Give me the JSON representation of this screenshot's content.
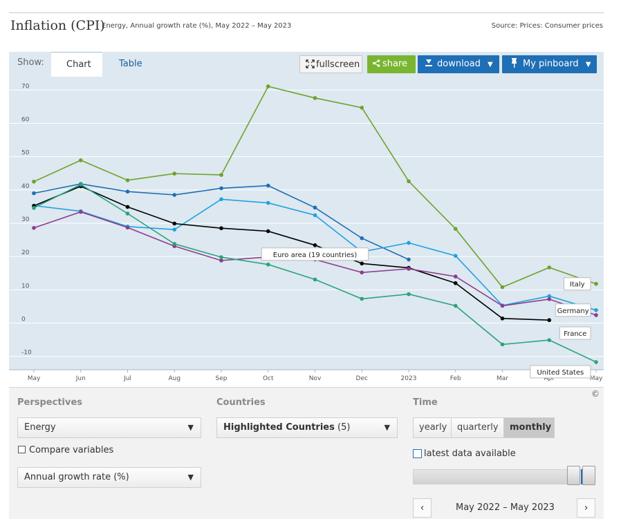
{
  "header": {
    "title": "Inflation (CPI)",
    "subtitle": "Energy, Annual growth rate (%), May 2022 – May 2023",
    "source": "Source: Prices: Consumer prices"
  },
  "toolbar": {
    "show_label": "Show:",
    "tabs": [
      "Chart",
      "Table"
    ],
    "fullscreen_label": "fullscreen",
    "share_label": "share",
    "download_label": "download",
    "pinboard_label": "My pinboard"
  },
  "chart_data": {
    "type": "line",
    "categories": [
      "May",
      "Jun",
      "Jul",
      "Aug",
      "Sep",
      "Oct",
      "Nov",
      "Dec",
      "2023",
      "Feb",
      "Mar",
      "Apr",
      "May"
    ],
    "ylim": [
      -14,
      74
    ],
    "yticks": [
      -10,
      0,
      10,
      20,
      30,
      40,
      50,
      60,
      70
    ],
    "grid": true,
    "series": [
      {
        "name": "Italy",
        "color": "#6da22a",
        "values": [
          42.5,
          48.9,
          42.9,
          44.9,
          44.5,
          71.1,
          67.6,
          64.7,
          42.6,
          28.3,
          10.8,
          16.7,
          11.8
        ]
      },
      {
        "name": "",
        "color": "#1f6eb2",
        "values": [
          39,
          41.8,
          39.5,
          38.5,
          40.5,
          41.3,
          34.7,
          25.5,
          19.1,
          null,
          null,
          null,
          null
        ]
      },
      {
        "name": "Germany",
        "color": "#1fa1df",
        "values": [
          35.3,
          33.6,
          29,
          28.1,
          37.2,
          36.1,
          32.4,
          21.4,
          24.1,
          20.2,
          5.3,
          8.1,
          3.9
        ]
      },
      {
        "name": "Euro area (19 countries)",
        "color": "#000000",
        "values": [
          35.2,
          41.1,
          34.9,
          29.9,
          28.5,
          27.6,
          23.4,
          17.9,
          16.6,
          12,
          1.4,
          0.9,
          null
        ]
      },
      {
        "name": "France",
        "color": "#8e3b8e",
        "values": [
          28.6,
          33.4,
          28.7,
          23.1,
          18.8,
          19.9,
          19.1,
          15.2,
          16.3,
          14,
          5.2,
          7.2,
          2.4
        ]
      },
      {
        "name": "United States",
        "color": "#2aa37a",
        "values": [
          34.6,
          41.6,
          32.9,
          23.8,
          19.8,
          17.6,
          13.1,
          7.3,
          8.7,
          5.2,
          -6.4,
          -5.1,
          -11.7
        ]
      }
    ],
    "labels": [
      {
        "text": "Euro area (19 countries)",
        "series": 3,
        "index": 6
      },
      {
        "text": "Italy",
        "series": 0,
        "index": 12
      },
      {
        "text": "Germany",
        "series": 2,
        "index": 12
      },
      {
        "text": "France",
        "series": 4,
        "index": 12
      },
      {
        "text": "United States",
        "series": 5,
        "index": 12
      }
    ],
    "copyright": "©"
  },
  "controls": {
    "perspectives": {
      "heading": "Perspectives",
      "variable": "Energy",
      "compare_label": "Compare variables",
      "measure": "Annual growth rate (%)"
    },
    "countries": {
      "heading": "Countries",
      "selection": "Highlighted Countries",
      "count": "(5)"
    },
    "time": {
      "heading": "Time",
      "options": [
        "yearly",
        "quarterly",
        "monthly"
      ],
      "selected": "monthly",
      "latest_label": "latest data available",
      "period": "May 2022 – May 2023"
    }
  },
  "colors": {
    "accent_green": "#7ab531",
    "accent_blue": "#1e6fb5",
    "plot_bg": "#dde8f0"
  }
}
